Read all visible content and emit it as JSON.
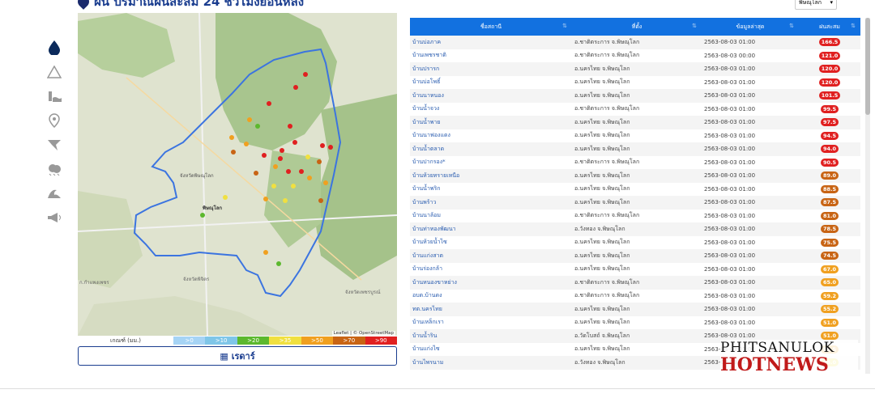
{
  "header": {
    "title": "ฝน ปริมาณฝนสะสม 24 ชั่วโมงย้อนหลัง"
  },
  "province_select": {
    "value": "พิษณุโลก"
  },
  "sidebar": {
    "items": [
      {
        "icon": "rain-drop-icon",
        "active": true
      },
      {
        "icon": "triangle-icon",
        "active": false
      },
      {
        "icon": "water-level-icon",
        "active": false
      },
      {
        "icon": "location-pin-icon",
        "active": false
      },
      {
        "icon": "storm-icon",
        "active": false
      },
      {
        "icon": "weather-icon",
        "active": false
      },
      {
        "icon": "wave-icon",
        "active": false
      },
      {
        "icon": "megaphone-icon",
        "active": false
      }
    ]
  },
  "map": {
    "attribution": "Leaflet | © OpenStreetMap",
    "labels": [
      "จังหวัดพิษณุโลก",
      "พิษณุโลก",
      "จังหวัดพิจิตร",
      "จังหวัดเพชรบูรณ์",
      "ก.กำแพงเพชร"
    ]
  },
  "legend": {
    "label": "เกณฑ์ (มม.)",
    "items": [
      {
        "text": ">0",
        "color": "#a6d4f5"
      },
      {
        "text": ">10",
        "color": "#7fc6e8"
      },
      {
        "text": ">20",
        "color": "#5cb82e"
      },
      {
        "text": ">35",
        "color": "#f0e040"
      },
      {
        "text": ">50",
        "color": "#f0a020"
      },
      {
        "text": ">70",
        "color": "#c86414"
      },
      {
        "text": ">90",
        "color": "#e02020"
      }
    ]
  },
  "radar_button": {
    "label": "เรดาร์"
  },
  "table": {
    "headers": [
      "ชื่อสถานี",
      "ที่ตั้ง",
      "ข้อมูลล่าสุด",
      "ฝนสะสม"
    ],
    "rows": [
      {
        "name": "บ้านบ่อภาค",
        "loc": "อ.ชาติตระการ จ.พิษณุโลก",
        "date": "2563-08-03 01:00",
        "val": "166.5",
        "color": "#e02020"
      },
      {
        "name": "บ้านเพชรชาติ",
        "loc": "อ.ชาติตระการ จ.พิษณุโลก",
        "date": "2563-08-03 00:00",
        "val": "121.0",
        "color": "#e02020"
      },
      {
        "name": "บ้านปรารก",
        "loc": "อ.นครไทย จ.พิษณุโลก",
        "date": "2563-08-03 01:00",
        "val": "120.0",
        "color": "#e02020"
      },
      {
        "name": "บ้านบ่อโพธิ์",
        "loc": "อ.นครไทย จ.พิษณุโลก",
        "date": "2563-08-03 01:00",
        "val": "120.0",
        "color": "#e02020"
      },
      {
        "name": "บ้านนาหนอง",
        "loc": "อ.นครไทย จ.พิษณุโลก",
        "date": "2563-08-03 01:00",
        "val": "101.5",
        "color": "#e02020"
      },
      {
        "name": "บ้านน้ำจวง",
        "loc": "อ.ชาติตระการ จ.พิษณุโลก",
        "date": "2563-08-03 01:00",
        "val": "99.5",
        "color": "#e02020"
      },
      {
        "name": "บ้านน้ำพาย",
        "loc": "อ.นครไทย จ.พิษณุโลก",
        "date": "2563-08-03 01:00",
        "val": "97.5",
        "color": "#e02020"
      },
      {
        "name": "บ้านนาฟองแดง",
        "loc": "อ.นครไทย จ.พิษณุโลก",
        "date": "2563-08-03 01:00",
        "val": "94.5",
        "color": "#e02020"
      },
      {
        "name": "บ้านน้ำตลาด",
        "loc": "อ.นครไทย จ.พิษณุโลก",
        "date": "2563-08-03 01:00",
        "val": "94.0",
        "color": "#e02020"
      },
      {
        "name": "บ้านปากรอง*",
        "loc": "อ.ชาติตระการ จ.พิษณุโลก",
        "date": "2563-08-03 01:00",
        "val": "90.5",
        "color": "#e02020"
      },
      {
        "name": "บ้านห้วยทรายเหนือ",
        "loc": "อ.นครไทย จ.พิษณุโลก",
        "date": "2563-08-03 01:00",
        "val": "89.0",
        "color": "#c86414"
      },
      {
        "name": "บ้านน้ำพริก",
        "loc": "อ.นครไทย จ.พิษณุโลก",
        "date": "2563-08-03 01:00",
        "val": "88.5",
        "color": "#c86414"
      },
      {
        "name": "บ้านพร้าว",
        "loc": "อ.นครไทย จ.พิษณุโลก",
        "date": "2563-08-03 01:00",
        "val": "87.5",
        "color": "#c86414"
      },
      {
        "name": "บ้านนาล้อม",
        "loc": "อ.ชาติตระการ จ.พิษณุโลก",
        "date": "2563-08-03 01:00",
        "val": "81.0",
        "color": "#c86414"
      },
      {
        "name": "บ้านท่าทองพัฒนา",
        "loc": "อ.วังทอง จ.พิษณุโลก",
        "date": "2563-08-03 01:00",
        "val": "78.5",
        "color": "#c86414"
      },
      {
        "name": "บ้านห้วยน้ำไซ",
        "loc": "อ.นครไทย จ.พิษณุโลก",
        "date": "2563-08-03 01:00",
        "val": "75.5",
        "color": "#c86414"
      },
      {
        "name": "บ้านแก่งสาต",
        "loc": "อ.นครไทย จ.พิษณุโลก",
        "date": "2563-08-03 01:00",
        "val": "74.5",
        "color": "#c86414"
      },
      {
        "name": "บ้านร่องกล้า",
        "loc": "อ.นครไทย จ.พิษณุโลก",
        "date": "2563-08-03 01:00",
        "val": "67.0",
        "color": "#f0a020"
      },
      {
        "name": "บ้านหนองขาหย่าง",
        "loc": "อ.ชาติตระการ จ.พิษณุโลก",
        "date": "2563-08-03 01:00",
        "val": "65.0",
        "color": "#f0a020"
      },
      {
        "name": "อบต.บ้านดง",
        "loc": "อ.ชาติตระการ จ.พิษณุโลก",
        "date": "2563-08-03 01:00",
        "val": "59.2",
        "color": "#f0a020"
      },
      {
        "name": "ทต.นครไทย",
        "loc": "อ.นครไทย จ.พิษณุโลก",
        "date": "2563-08-03 01:00",
        "val": "55.2",
        "color": "#f0a020"
      },
      {
        "name": "บ้านเหล็กเรา",
        "loc": "อ.นครไทย จ.พิษณุโลก",
        "date": "2563-08-03 01:00",
        "val": "51.0",
        "color": "#f0a020"
      },
      {
        "name": "บ้านน้ำริน",
        "loc": "อ.วัดโบสถ์ จ.พิษณุโลก",
        "date": "2563-08-03 01:00",
        "val": "51.0",
        "color": "#f0a020"
      },
      {
        "name": "บ้านแก่งไซ",
        "loc": "อ.นครไทย จ.พิษณุโลก",
        "date": "2563-08-03 01:00",
        "val": "50.5",
        "color": "#f0a020"
      },
      {
        "name": "บ้านไพรนาม",
        "loc": "อ.วังทอง จ.พิษณุโลก",
        "date": "2563-08-03 01:00",
        "val": "46.0",
        "color": "#f0e040"
      }
    ]
  },
  "watermark": {
    "line1": "PHITSANULOK",
    "line2": "HOTNEWS"
  }
}
